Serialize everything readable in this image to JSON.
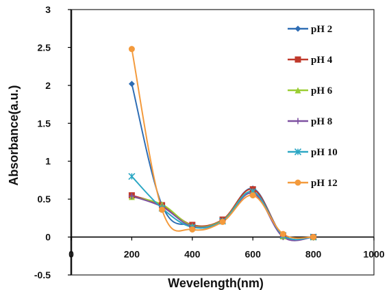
{
  "chart_data": {
    "type": "line",
    "title": "",
    "xlabel": "Wevelength(nm)",
    "ylabel": "Absorbance(a.u.)",
    "xlim": [
      0,
      1000
    ],
    "ylim": [
      -0.5,
      3
    ],
    "x_ticks": [
      "0",
      "200",
      "400",
      "600",
      "800",
      "1000"
    ],
    "y_ticks": [
      "-0.5",
      "0",
      "0.5",
      "1",
      "1.5",
      "2",
      "2.5",
      "3"
    ],
    "grid": false,
    "legend_position": "top-right",
    "x": [
      200,
      300,
      400,
      500,
      600,
      700,
      800
    ],
    "series": [
      {
        "name": "pH 2",
        "color": "#2E6DB4",
        "marker": "diamond",
        "values": [
          2.02,
          0.42,
          0.16,
          0.22,
          0.64,
          0.02,
          0.0
        ]
      },
      {
        "name": "pH 4",
        "color": "#C0392B",
        "marker": "square",
        "values": [
          0.55,
          0.42,
          0.16,
          0.23,
          0.63,
          0.02,
          0.0
        ]
      },
      {
        "name": "pH 6",
        "color": "#9ACD32",
        "marker": "triangle",
        "values": [
          0.53,
          0.43,
          0.15,
          0.22,
          0.6,
          0.01,
          0.0
        ]
      },
      {
        "name": "pH 8",
        "color": "#7D4FA0",
        "marker": "cross",
        "values": [
          0.54,
          0.4,
          0.14,
          0.21,
          0.58,
          0.0,
          0.0
        ]
      },
      {
        "name": "pH 10",
        "color": "#2BA7C4",
        "marker": "star",
        "values": [
          0.8,
          0.38,
          0.13,
          0.21,
          0.6,
          0.02,
          0.0
        ]
      },
      {
        "name": "pH 12",
        "color": "#F39A3C",
        "marker": "circle",
        "values": [
          2.48,
          0.36,
          0.1,
          0.2,
          0.55,
          0.04,
          0.0
        ]
      }
    ]
  },
  "legend": {
    "labels": [
      "pH 2",
      "pH 4",
      "pH 6",
      "pH 8",
      "pH 10",
      "pH 12"
    ]
  }
}
